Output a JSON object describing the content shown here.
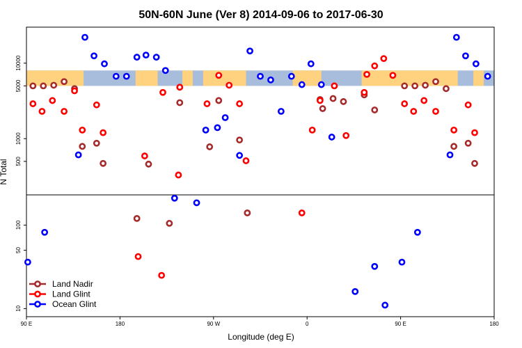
{
  "chart_data": {
    "type": "scatter",
    "title": "50N-60N June (Ver 8)   2014-09-06 to 2017-06-30",
    "xlabel": "Longitude (deg E)",
    "ylabel": "N Total",
    "xlim": [
      0,
      360
    ],
    "x_ticks": [
      {
        "x": 0,
        "label": "90 E"
      },
      {
        "x": 72,
        "label": "180"
      },
      {
        "x": 144,
        "label": "90 W"
      },
      {
        "x": 216,
        "label": "0"
      },
      {
        "x": 288,
        "label": "90 E"
      },
      {
        "x": 360,
        "label": "180"
      }
    ],
    "y_scale": "log",
    "panels": [
      {
        "name": "top",
        "ylim": [
          180,
          30000
        ],
        "y_ticks": [
          500,
          1000,
          5000,
          10000
        ]
      },
      {
        "name": "bottom",
        "ylim": [
          8,
          230
        ],
        "y_ticks": [
          10,
          50,
          100
        ]
      }
    ],
    "legend_position": "bottom-left",
    "land_band": {
      "ylim": [
        5000,
        8000
      ],
      "land_color": "#FFD27F",
      "ocean_color": "#A8BCDC"
    },
    "series": [
      {
        "name": "Land Nadir",
        "color": "#A52A2A",
        "points": [
          {
            "x": 5,
            "y": 5000
          },
          {
            "x": 13,
            "y": 5000
          },
          {
            "x": 21,
            "y": 5100
          },
          {
            "x": 29,
            "y": 5700
          },
          {
            "x": 37,
            "y": 4600
          },
          {
            "x": 43,
            "y": 790
          },
          {
            "x": 54,
            "y": 870
          },
          {
            "x": 59,
            "y": 470
          },
          {
            "x": 94,
            "y": 460
          },
          {
            "x": 118,
            "y": 3000
          },
          {
            "x": 141,
            "y": 780
          },
          {
            "x": 148,
            "y": 3200
          },
          {
            "x": 164,
            "y": 960
          },
          {
            "x": 226,
            "y": 3300
          },
          {
            "x": 228,
            "y": 2500
          },
          {
            "x": 236,
            "y": 3400
          },
          {
            "x": 244,
            "y": 3100
          },
          {
            "x": 260,
            "y": 3800
          },
          {
            "x": 268,
            "y": 2400
          },
          {
            "x": 291,
            "y": 5000
          },
          {
            "x": 299,
            "y": 5000
          },
          {
            "x": 307,
            "y": 5100
          },
          {
            "x": 315,
            "y": 5700
          },
          {
            "x": 323,
            "y": 4600
          },
          {
            "x": 329,
            "y": 790
          },
          {
            "x": 340,
            "y": 870
          },
          {
            "x": 345,
            "y": 470
          },
          {
            "x": 85,
            "y": 120
          },
          {
            "x": 110,
            "y": 105
          },
          {
            "x": 170,
            "y": 140
          }
        ]
      },
      {
        "name": "Land Glint",
        "color": "#FF0000",
        "points": [
          {
            "x": 5,
            "y": 2900
          },
          {
            "x": 12,
            "y": 2300
          },
          {
            "x": 20,
            "y": 3200
          },
          {
            "x": 29,
            "y": 2300
          },
          {
            "x": 37,
            "y": 4300
          },
          {
            "x": 43,
            "y": 1300
          },
          {
            "x": 54,
            "y": 2800
          },
          {
            "x": 59,
            "y": 1200
          },
          {
            "x": 91,
            "y": 590
          },
          {
            "x": 105,
            "y": 4100
          },
          {
            "x": 117,
            "y": 330
          },
          {
            "x": 118,
            "y": 4800
          },
          {
            "x": 139,
            "y": 2900
          },
          {
            "x": 148,
            "y": 6900
          },
          {
            "x": 156,
            "y": 5100
          },
          {
            "x": 164,
            "y": 2900
          },
          {
            "x": 169,
            "y": 510
          },
          {
            "x": 220,
            "y": 1300
          },
          {
            "x": 226,
            "y": 3200
          },
          {
            "x": 237,
            "y": 5000
          },
          {
            "x": 246,
            "y": 1100
          },
          {
            "x": 260,
            "y": 4100
          },
          {
            "x": 262,
            "y": 7100
          },
          {
            "x": 268,
            "y": 9200
          },
          {
            "x": 275,
            "y": 11500
          },
          {
            "x": 282,
            "y": 6900
          },
          {
            "x": 291,
            "y": 2900
          },
          {
            "x": 298,
            "y": 2300
          },
          {
            "x": 306,
            "y": 3200
          },
          {
            "x": 315,
            "y": 2300
          },
          {
            "x": 329,
            "y": 1300
          },
          {
            "x": 340,
            "y": 2800
          },
          {
            "x": 345,
            "y": 1200
          },
          {
            "x": 86,
            "y": 42
          },
          {
            "x": 104,
            "y": 25
          },
          {
            "x": 212,
            "y": 140
          }
        ]
      },
      {
        "name": "Ocean Glint",
        "color": "#0000FF",
        "points": [
          {
            "x": 40,
            "y": 610
          },
          {
            "x": 45,
            "y": 22000
          },
          {
            "x": 52,
            "y": 12500
          },
          {
            "x": 60,
            "y": 9800
          },
          {
            "x": 69,
            "y": 6700
          },
          {
            "x": 77,
            "y": 6700
          },
          {
            "x": 85,
            "y": 12000
          },
          {
            "x": 92,
            "y": 12800
          },
          {
            "x": 100,
            "y": 12000
          },
          {
            "x": 107,
            "y": 8000
          },
          {
            "x": 138,
            "y": 1300
          },
          {
            "x": 147,
            "y": 1400
          },
          {
            "x": 153,
            "y": 1900
          },
          {
            "x": 164,
            "y": 600
          },
          {
            "x": 172,
            "y": 14500
          },
          {
            "x": 180,
            "y": 6700
          },
          {
            "x": 188,
            "y": 6000
          },
          {
            "x": 196,
            "y": 2300
          },
          {
            "x": 204,
            "y": 6700
          },
          {
            "x": 212,
            "y": 5200
          },
          {
            "x": 219,
            "y": 9800
          },
          {
            "x": 227,
            "y": 5200
          },
          {
            "x": 235,
            "y": 1050
          },
          {
            "x": 326,
            "y": 610
          },
          {
            "x": 331,
            "y": 22000
          },
          {
            "x": 338,
            "y": 12500
          },
          {
            "x": 346,
            "y": 9800
          },
          {
            "x": 355,
            "y": 6700
          },
          {
            "x": 1,
            "y": 36
          },
          {
            "x": 14,
            "y": 82
          },
          {
            "x": 114,
            "y": 210
          },
          {
            "x": 131,
            "y": 185
          },
          {
            "x": 253,
            "y": 16
          },
          {
            "x": 268,
            "y": 32
          },
          {
            "x": 276,
            "y": 11
          },
          {
            "x": 289,
            "y": 36
          },
          {
            "x": 301,
            "y": 82
          }
        ]
      }
    ]
  }
}
